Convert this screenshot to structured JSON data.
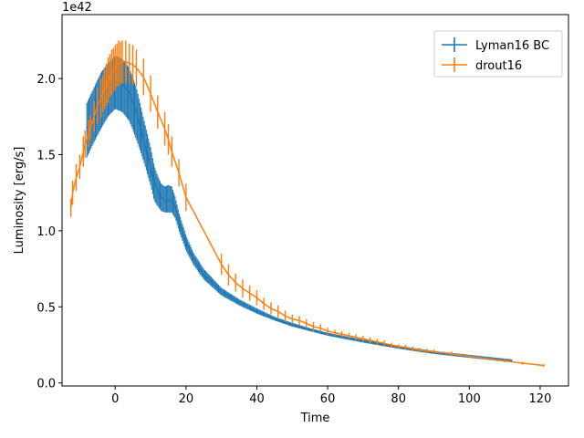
{
  "chart_data": {
    "type": "line",
    "title": "",
    "xlabel": "Time",
    "ylabel": "Luminosity [erg/s]",
    "y_offset_label": "1e42",
    "xlim": [
      -15,
      128
    ],
    "ylim": [
      -0.02,
      2.42
    ],
    "x_ticks": [
      0,
      20,
      40,
      60,
      80,
      100,
      120
    ],
    "y_ticks": [
      0.0,
      0.5,
      1.0,
      1.5,
      2.0
    ],
    "x_tick_labels": [
      "0",
      "20",
      "40",
      "60",
      "80",
      "100",
      "120"
    ],
    "y_tick_labels": [
      "0.0",
      "0.5",
      "1.0",
      "1.5",
      "2.0"
    ],
    "grid": false,
    "legend_position": "top-right",
    "series": [
      {
        "name": "Lyman16 BC",
        "color": "#1f77b4",
        "style": "dense-errorbar-band",
        "x": [
          -8,
          -6,
          -4,
          -2,
          0,
          2,
          4,
          6,
          8,
          10,
          11,
          12,
          13,
          14,
          15,
          16,
          17,
          18,
          20,
          22,
          25,
          30,
          35,
          40,
          45,
          50,
          55,
          60,
          70,
          80,
          90,
          100,
          112
        ],
        "y": [
          1.67,
          1.76,
          1.86,
          1.93,
          1.98,
          1.96,
          1.91,
          1.78,
          1.6,
          1.42,
          1.32,
          1.26,
          1.22,
          1.2,
          1.2,
          1.2,
          1.15,
          1.06,
          0.92,
          0.82,
          0.71,
          0.6,
          0.53,
          0.47,
          0.42,
          0.38,
          0.35,
          0.32,
          0.275,
          0.235,
          0.2,
          0.175,
          0.145
        ],
        "lo": [
          1.48,
          1.58,
          1.67,
          1.75,
          1.8,
          1.78,
          1.72,
          1.6,
          1.46,
          1.3,
          1.2,
          1.16,
          1.13,
          1.12,
          1.12,
          1.12,
          1.08,
          1.0,
          0.87,
          0.78,
          0.68,
          0.575,
          0.51,
          0.455,
          0.41,
          0.37,
          0.34,
          0.31,
          0.265,
          0.225,
          0.19,
          0.165,
          0.135
        ],
        "hi": [
          1.84,
          1.94,
          2.04,
          2.1,
          2.15,
          2.13,
          2.07,
          1.94,
          1.74,
          1.55,
          1.43,
          1.36,
          1.31,
          1.29,
          1.3,
          1.29,
          1.22,
          1.12,
          0.97,
          0.86,
          0.75,
          0.625,
          0.55,
          0.49,
          0.435,
          0.395,
          0.36,
          0.33,
          0.285,
          0.245,
          0.21,
          0.185,
          0.155
        ]
      },
      {
        "name": "drout16",
        "color": "#ff7f0e",
        "style": "line-with-errorbars",
        "x": [
          -12.5,
          -12,
          -11,
          -10,
          -9,
          -8.5,
          -7.5,
          -7,
          -6,
          -5,
          -4,
          -3.5,
          -3,
          -2.5,
          -2,
          -1.5,
          -1,
          -0.5,
          0,
          0.5,
          1,
          1.5,
          2,
          3,
          4,
          5,
          6,
          8,
          10,
          12,
          14,
          15,
          16,
          18,
          20,
          30,
          32,
          34,
          36,
          38,
          40,
          42,
          44,
          46,
          48,
          50,
          52,
          54,
          56,
          58,
          60,
          62,
          64,
          66,
          68,
          70,
          72,
          74,
          76,
          78,
          80,
          82,
          84,
          86,
          88,
          90,
          95,
          100,
          110,
          115,
          121
        ],
        "y": [
          1.15,
          1.25,
          1.35,
          1.42,
          1.52,
          1.57,
          1.64,
          1.68,
          1.75,
          1.82,
          1.87,
          1.9,
          1.93,
          1.96,
          1.99,
          2.02,
          2.04,
          2.06,
          2.07,
          2.09,
          2.1,
          2.1,
          2.11,
          2.11,
          2.1,
          2.09,
          2.07,
          2.01,
          1.9,
          1.78,
          1.67,
          1.6,
          1.52,
          1.38,
          1.22,
          0.78,
          0.71,
          0.66,
          0.62,
          0.59,
          0.56,
          0.52,
          0.49,
          0.47,
          0.44,
          0.42,
          0.41,
          0.39,
          0.37,
          0.36,
          0.34,
          0.33,
          0.32,
          0.31,
          0.3,
          0.29,
          0.28,
          0.27,
          0.26,
          0.25,
          0.24,
          0.235,
          0.225,
          0.215,
          0.21,
          0.205,
          0.19,
          0.175,
          0.145,
          0.13,
          0.115
        ],
        "err": [
          0.06,
          0.08,
          0.09,
          0.08,
          0.1,
          0.09,
          0.09,
          0.08,
          0.1,
          0.12,
          0.13,
          0.12,
          0.13,
          0.14,
          0.15,
          0.14,
          0.15,
          0.14,
          0.15,
          0.14,
          0.15,
          0.14,
          0.14,
          0.14,
          0.13,
          0.13,
          0.12,
          0.12,
          0.12,
          0.11,
          0.11,
          0.1,
          0.1,
          0.09,
          0.09,
          0.07,
          0.07,
          0.06,
          0.06,
          0.05,
          0.05,
          0.04,
          0.04,
          0.04,
          0.035,
          0.03,
          0.03,
          0.03,
          0.03,
          0.025,
          0.025,
          0.02,
          0.02,
          0.02,
          0.02,
          0.02,
          0.02,
          0.02,
          0.02,
          0.015,
          0.015,
          0.015,
          0.015,
          0.015,
          0.015,
          0.015,
          0.015,
          0.01,
          0.01,
          0.01,
          0.01
        ]
      }
    ]
  }
}
